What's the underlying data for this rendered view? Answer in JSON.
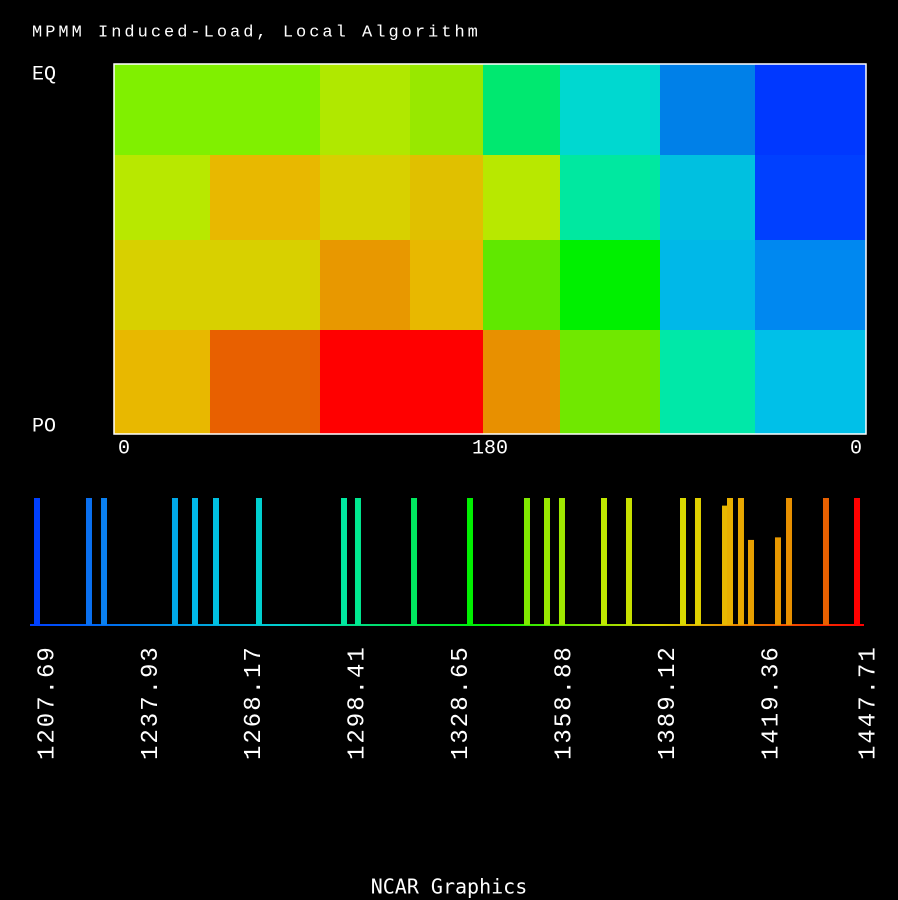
{
  "chart_data": [
    {
      "type": "map",
      "title": "MPMM Induced-Load, Local Algorithm",
      "y_labels": {
        "top": "EQ",
        "bottom": "PO"
      },
      "x_labels": [
        "0",
        "180",
        "0"
      ]
    },
    {
      "type": "bar",
      "x": [
        1207.69,
        1222.89,
        1227.28,
        1248.03,
        1253.88,
        1260.02,
        1272.59,
        1297.44,
        1301.53,
        1317.91,
        1334.28,
        1350.94,
        1356.79,
        1361.17,
        1373.45,
        1380.76,
        1396.55,
        1400.93,
        1408.83,
        1410.29,
        1413.5,
        1416.43,
        1424.32,
        1427.54,
        1438.35,
        1447.42
      ],
      "values": [
        1,
        1,
        1,
        1,
        1,
        1,
        1,
        1,
        1,
        1,
        1,
        1,
        1,
        1,
        1,
        1,
        1,
        1,
        0.94,
        1,
        1,
        0.67,
        0.69,
        1,
        1,
        1
      ],
      "colors": [
        "#0040ff",
        "#0a70f0",
        "#0a80f0",
        "#00a8e8",
        "#00b8e8",
        "#00c0e0",
        "#00d0d0",
        "#00e8a0",
        "#00e890",
        "#00e860",
        "#00f000",
        "#80e800",
        "#98e800",
        "#a0e800",
        "#c0e800",
        "#c8e000",
        "#d8d800",
        "#e0d000",
        "#e8b800",
        "#e8b000",
        "#e8a800",
        "#e8a000",
        "#e89800",
        "#e89000",
        "#e86000",
        "#ff0000"
      ],
      "xlim": [
        1207.69,
        1447.71
      ],
      "ylim": [
        0,
        1
      ],
      "xticks": [
        1207.69,
        1237.93,
        1268.17,
        1298.41,
        1328.65,
        1358.88,
        1389.12,
        1419.36,
        1447.71
      ]
    }
  ],
  "footer": "NCAR Graphics"
}
